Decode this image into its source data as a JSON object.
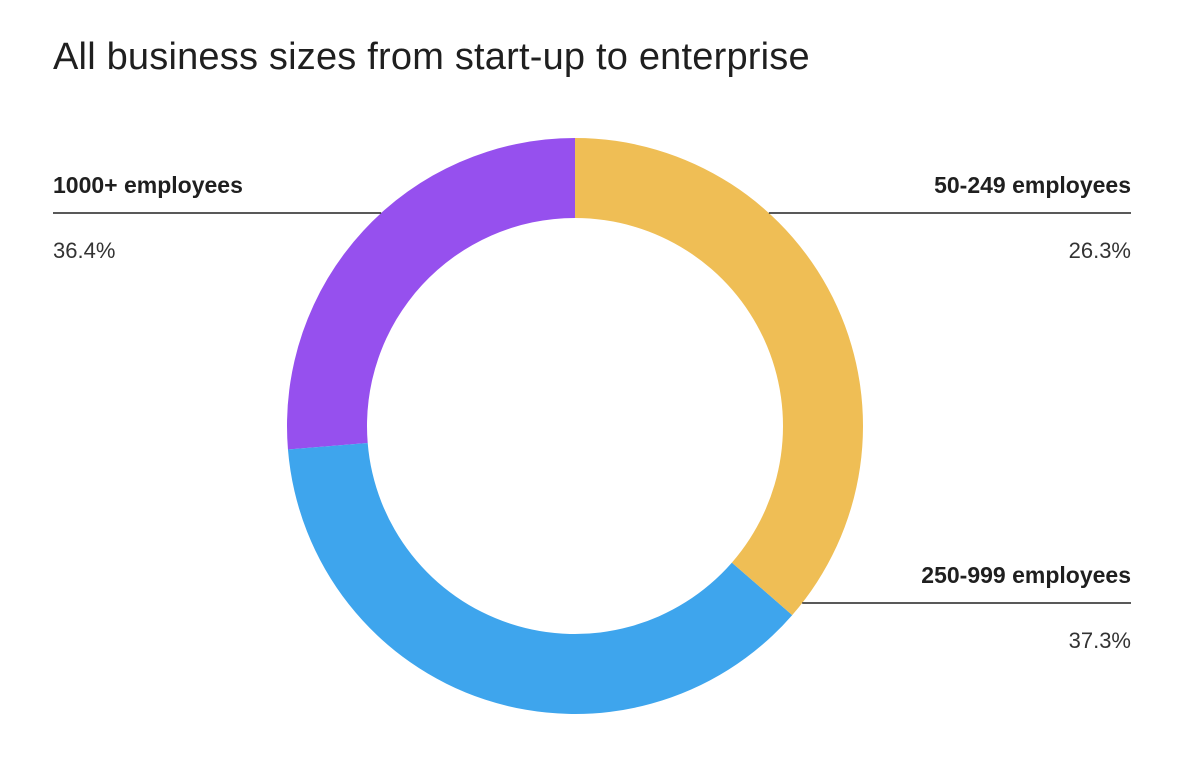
{
  "chart_data": {
    "type": "pie",
    "variant": "donut",
    "title": "All business sizes from start-up to enterprise",
    "categories": [
      "50-249 employees",
      "250-999 employees",
      "1000+ employees"
    ],
    "values": [
      26.3,
      37.3,
      36.4
    ],
    "value_labels": [
      "26.3%",
      "37.3%",
      "36.4%"
    ],
    "colors": [
      "#9650EE",
      "#3EA5ED",
      "#EFBE55"
    ],
    "label_sides": [
      "right",
      "right",
      "left"
    ],
    "legend": "none"
  }
}
